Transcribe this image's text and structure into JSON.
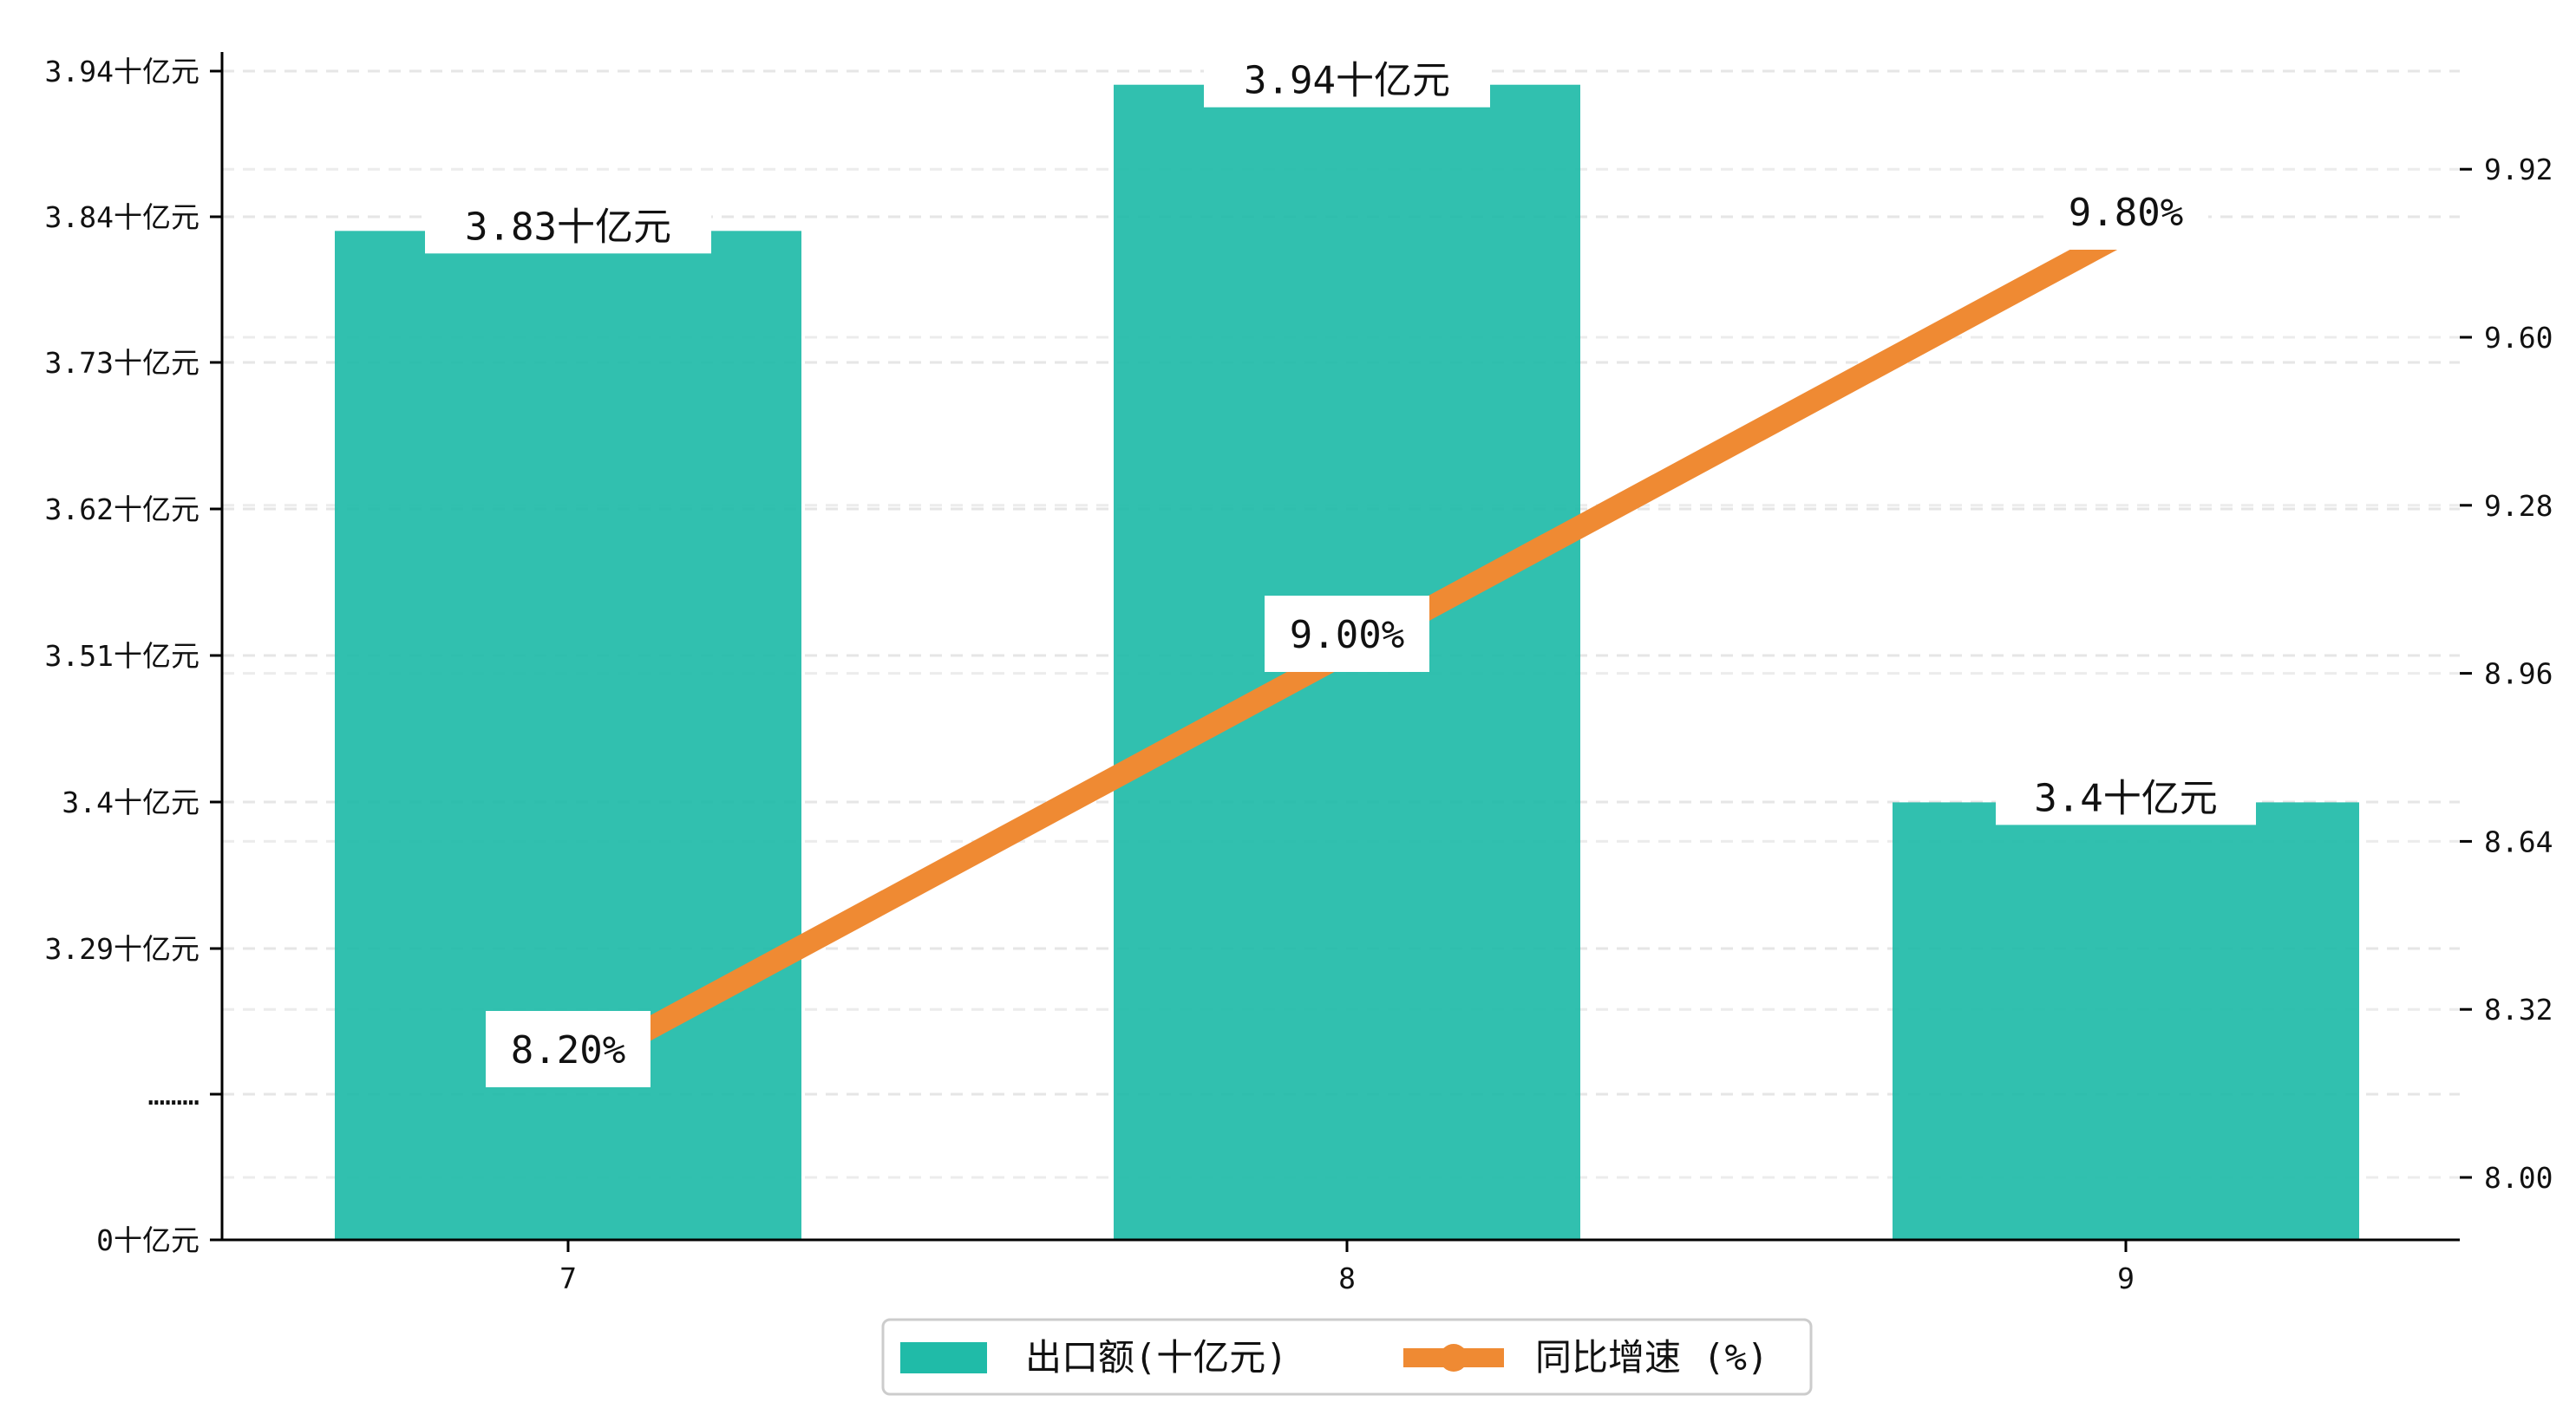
{
  "chart_data": {
    "type": "bar+line",
    "categories": [
      "7",
      "8",
      "9"
    ],
    "series": [
      {
        "name": "出口额(十亿元)",
        "type": "bar",
        "axis": "left",
        "color": "#20bba8",
        "values": [
          3.83,
          3.94,
          3.4
        ],
        "value_labels": [
          "3.83十亿元",
          "3.94十亿元",
          "3.4十亿元"
        ]
      },
      {
        "name": "同比增速 (%)",
        "type": "line",
        "axis": "right",
        "color": "#ef8a33",
        "values": [
          8.2,
          9.0,
          9.8
        ],
        "value_labels": [
          "8.20%",
          "9.00%",
          "9.80%"
        ]
      }
    ],
    "left_axis": {
      "broken": true,
      "ticks": [
        {
          "value": 0,
          "label": "0十亿元"
        },
        {
          "value": null,
          "label": "………"
        },
        {
          "value": 3.29,
          "label": "3.29十亿元"
        },
        {
          "value": 3.4,
          "label": "3.4十亿元"
        },
        {
          "value": 3.51,
          "label": "3.51十亿元"
        },
        {
          "value": 3.62,
          "label": "3.62十亿元"
        },
        {
          "value": 3.73,
          "label": "3.73十亿元"
        },
        {
          "value": 3.84,
          "label": "3.84十亿元"
        },
        {
          "value": 3.94,
          "label": "3.94十亿元"
        }
      ]
    },
    "right_axis": {
      "ylim": [
        7.9,
        10.1
      ],
      "ticks": [
        "8.00",
        "8.32",
        "8.64",
        "8.96",
        "9.28",
        "9.60",
        "9.92"
      ]
    },
    "grid": "horizontal dashed",
    "legend": {
      "position": "bottom-center",
      "entries": [
        "出口额(十亿元)",
        "同比增速 (%)"
      ]
    }
  }
}
